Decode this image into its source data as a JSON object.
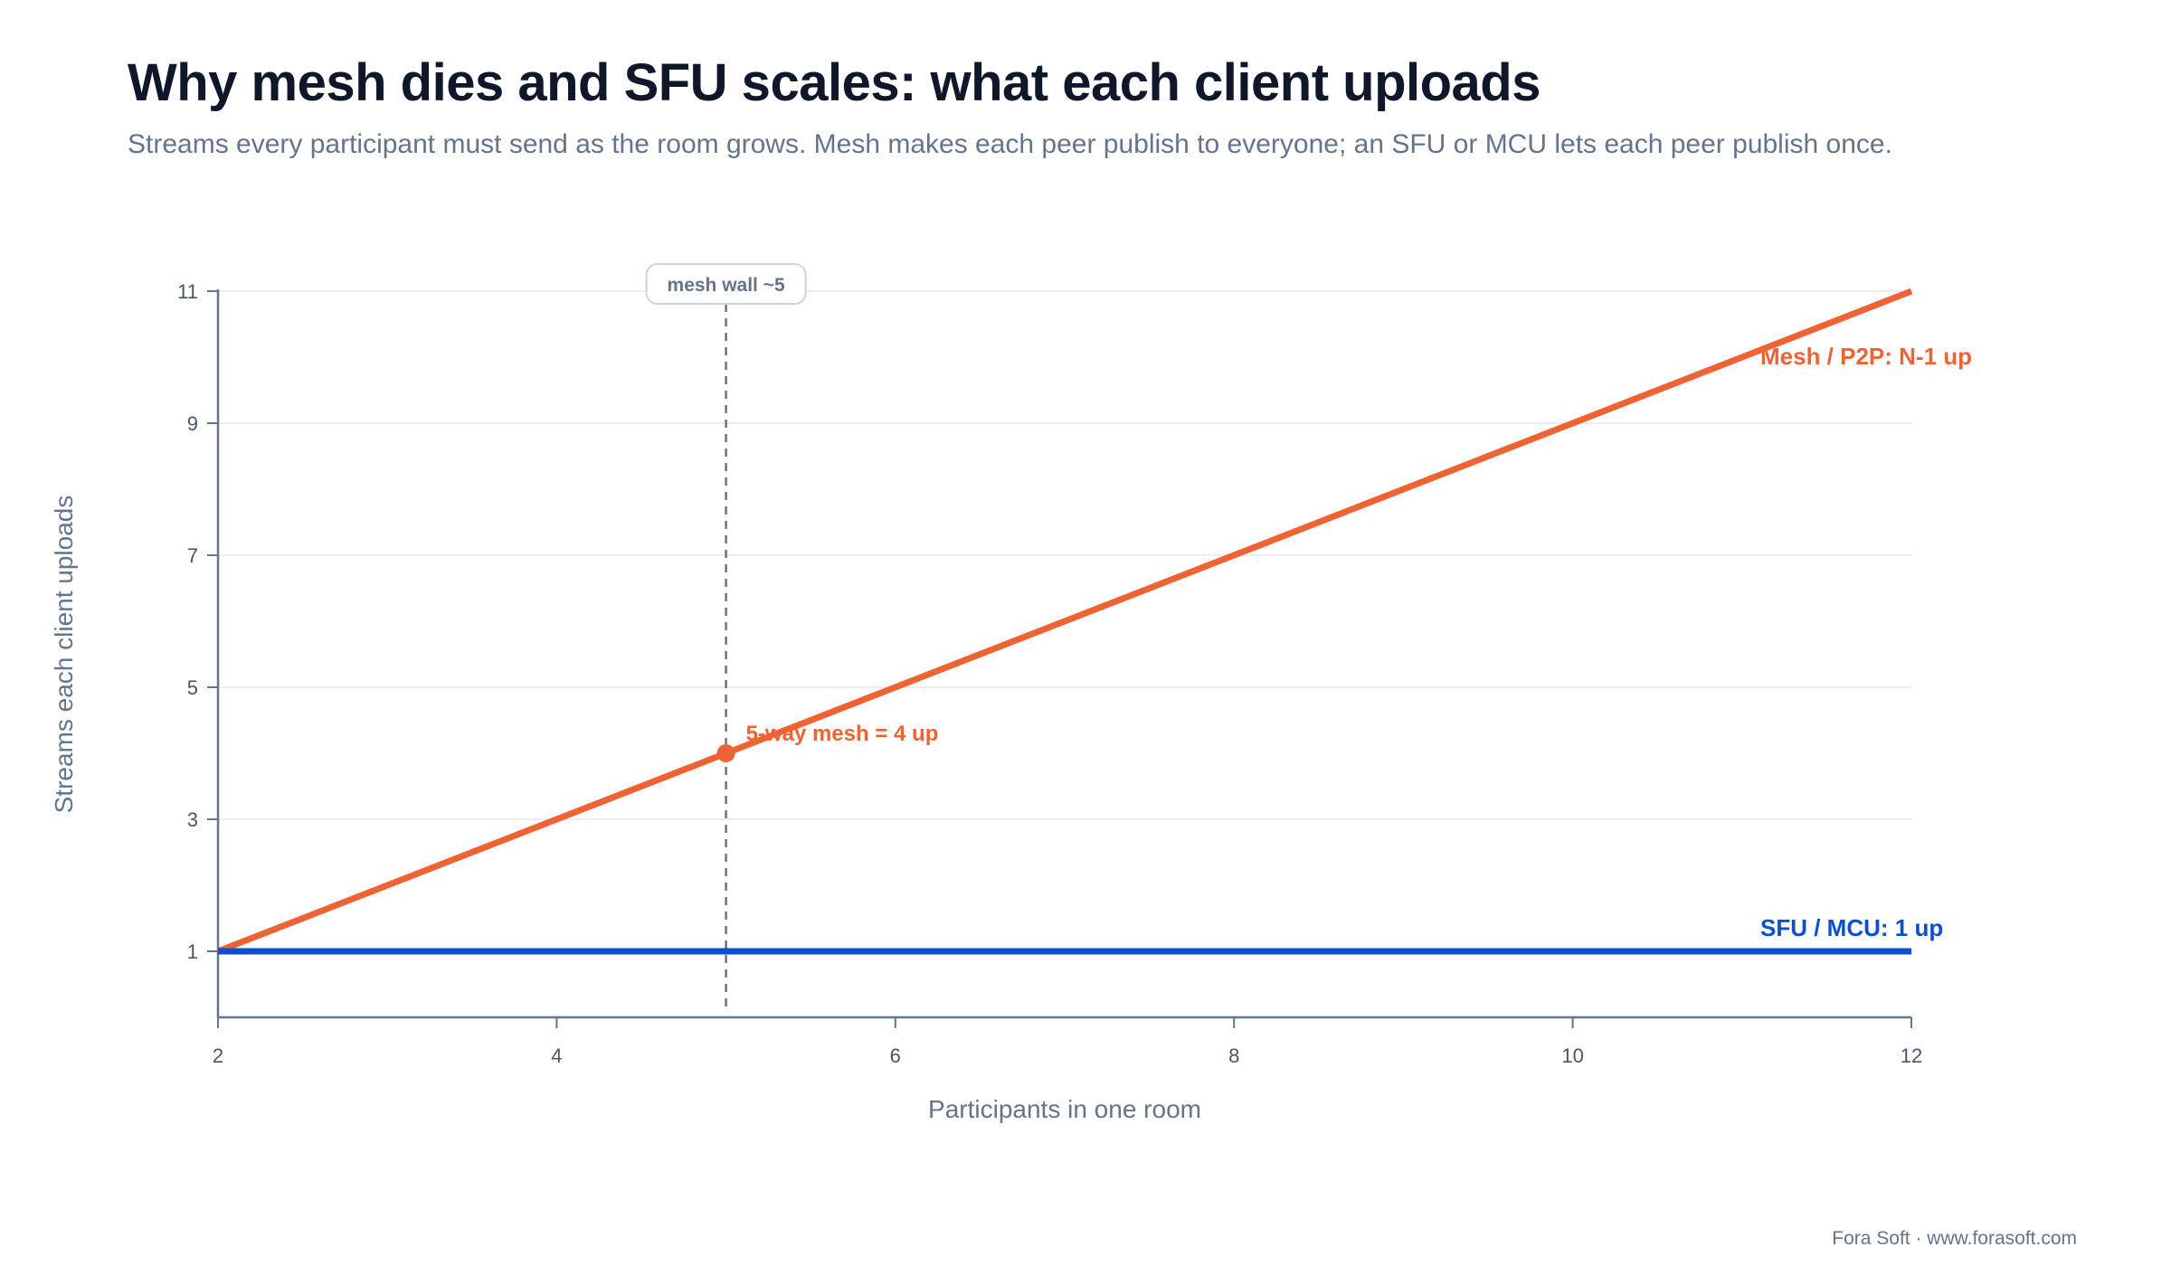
{
  "header": {
    "title": "Why mesh dies and SFU scales: what each client uploads",
    "subtitle": "Streams every participant must send as the room grows. Mesh makes each peer publish to everyone; an SFU or MCU lets each peer publish once."
  },
  "footer": {
    "credit": "Fora Soft · www.forasoft.com"
  },
  "chart_data": {
    "type": "line",
    "title": "Why mesh dies and SFU scales: what each client uploads",
    "subtitle": "Streams every participant must send as the room grows. Mesh makes each peer publish to everyone; an SFU or MCU lets each peer publish once.",
    "xlabel": "Participants in one room",
    "ylabel": "Streams each client uploads",
    "xlim": [
      2,
      12
    ],
    "ylim": [
      0,
      11
    ],
    "xticks": [
      2,
      4,
      6,
      8,
      10,
      12
    ],
    "yticks": [
      1,
      3,
      5,
      7,
      9,
      11
    ],
    "grid": "horizontal",
    "series": [
      {
        "name": "Mesh / P2P: N-1 up",
        "color": "#ef6234",
        "x": [
          2,
          3,
          4,
          5,
          6,
          7,
          8,
          9,
          10,
          11,
          12
        ],
        "y": [
          1,
          2,
          3,
          4,
          5,
          6,
          7,
          8,
          9,
          10,
          11
        ]
      },
      {
        "name": "SFU / MCU: 1 up",
        "color": "#0b4fcf",
        "x": [
          2,
          3,
          4,
          5,
          6,
          7,
          8,
          9,
          10,
          11,
          12
        ],
        "y": [
          1,
          1,
          1,
          1,
          1,
          1,
          1,
          1,
          1,
          1,
          1
        ]
      }
    ],
    "annotations": [
      {
        "type": "vline",
        "x": 5,
        "label": "mesh wall ~5",
        "color": "#64748b"
      },
      {
        "type": "point",
        "x": 5,
        "y": 4,
        "label": "5-way mesh = 4 up",
        "color": "#ef6234"
      }
    ]
  }
}
